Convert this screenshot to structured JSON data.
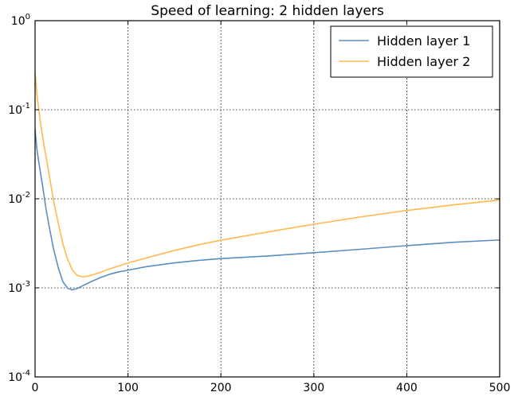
{
  "chart_data": {
    "type": "line",
    "title": "Speed of learning: 2 hidden layers",
    "xlabel": "",
    "ylabel": "",
    "xlim": [
      0,
      500
    ],
    "ylim": [
      0.0001,
      1
    ],
    "yscale": "log",
    "xticks": [
      0,
      100,
      200,
      300,
      400,
      500
    ],
    "yticks": [
      {
        "base": "10",
        "exponent": "-4",
        "value": 0.0001
      },
      {
        "base": "10",
        "exponent": "-3",
        "value": 0.001
      },
      {
        "base": "10",
        "exponent": "-2",
        "value": 0.01
      },
      {
        "base": "10",
        "exponent": "-1",
        "value": 0.1
      },
      {
        "base": "10",
        "exponent": "0",
        "value": 1
      }
    ],
    "grid": true,
    "legend_position": "top-right",
    "series": [
      {
        "name": "Hidden layer 1",
        "color": "#5b8fbf",
        "x": [
          0,
          2,
          4,
          6,
          8,
          10,
          12,
          15,
          20,
          25,
          30,
          35,
          40,
          45,
          50,
          60,
          70,
          80,
          90,
          100,
          120,
          150,
          175,
          200,
          250,
          300,
          350,
          400,
          450,
          500
        ],
        "y": [
          0.06,
          0.036,
          0.026,
          0.019,
          0.0142,
          0.0102,
          0.0075,
          0.005,
          0.0027,
          0.00168,
          0.00117,
          0.00099,
          0.00095,
          0.00098,
          0.00104,
          0.00117,
          0.0013,
          0.00142,
          0.00151,
          0.00158,
          0.00173,
          0.00191,
          0.00203,
          0.00213,
          0.00228,
          0.00248,
          0.00271,
          0.00298,
          0.00325,
          0.00345
        ]
      },
      {
        "name": "Hidden layer 2",
        "color": "#ffb84d",
        "x": [
          0,
          2,
          4,
          6,
          8,
          10,
          12,
          15,
          20,
          25,
          30,
          35,
          40,
          45,
          50,
          55,
          60,
          70,
          80,
          90,
          100,
          120,
          150,
          175,
          200,
          250,
          300,
          350,
          400,
          450,
          500
        ],
        "y": [
          0.26,
          0.15,
          0.1,
          0.07,
          0.051,
          0.038,
          0.029,
          0.019,
          0.0094,
          0.0053,
          0.0031,
          0.0021,
          0.0016,
          0.00139,
          0.00133,
          0.00134,
          0.00138,
          0.00149,
          0.00163,
          0.00176,
          0.0019,
          0.00217,
          0.00263,
          0.00303,
          0.00343,
          0.00423,
          0.00518,
          0.00625,
          0.0074,
          0.00853,
          0.0097
        ]
      }
    ]
  }
}
